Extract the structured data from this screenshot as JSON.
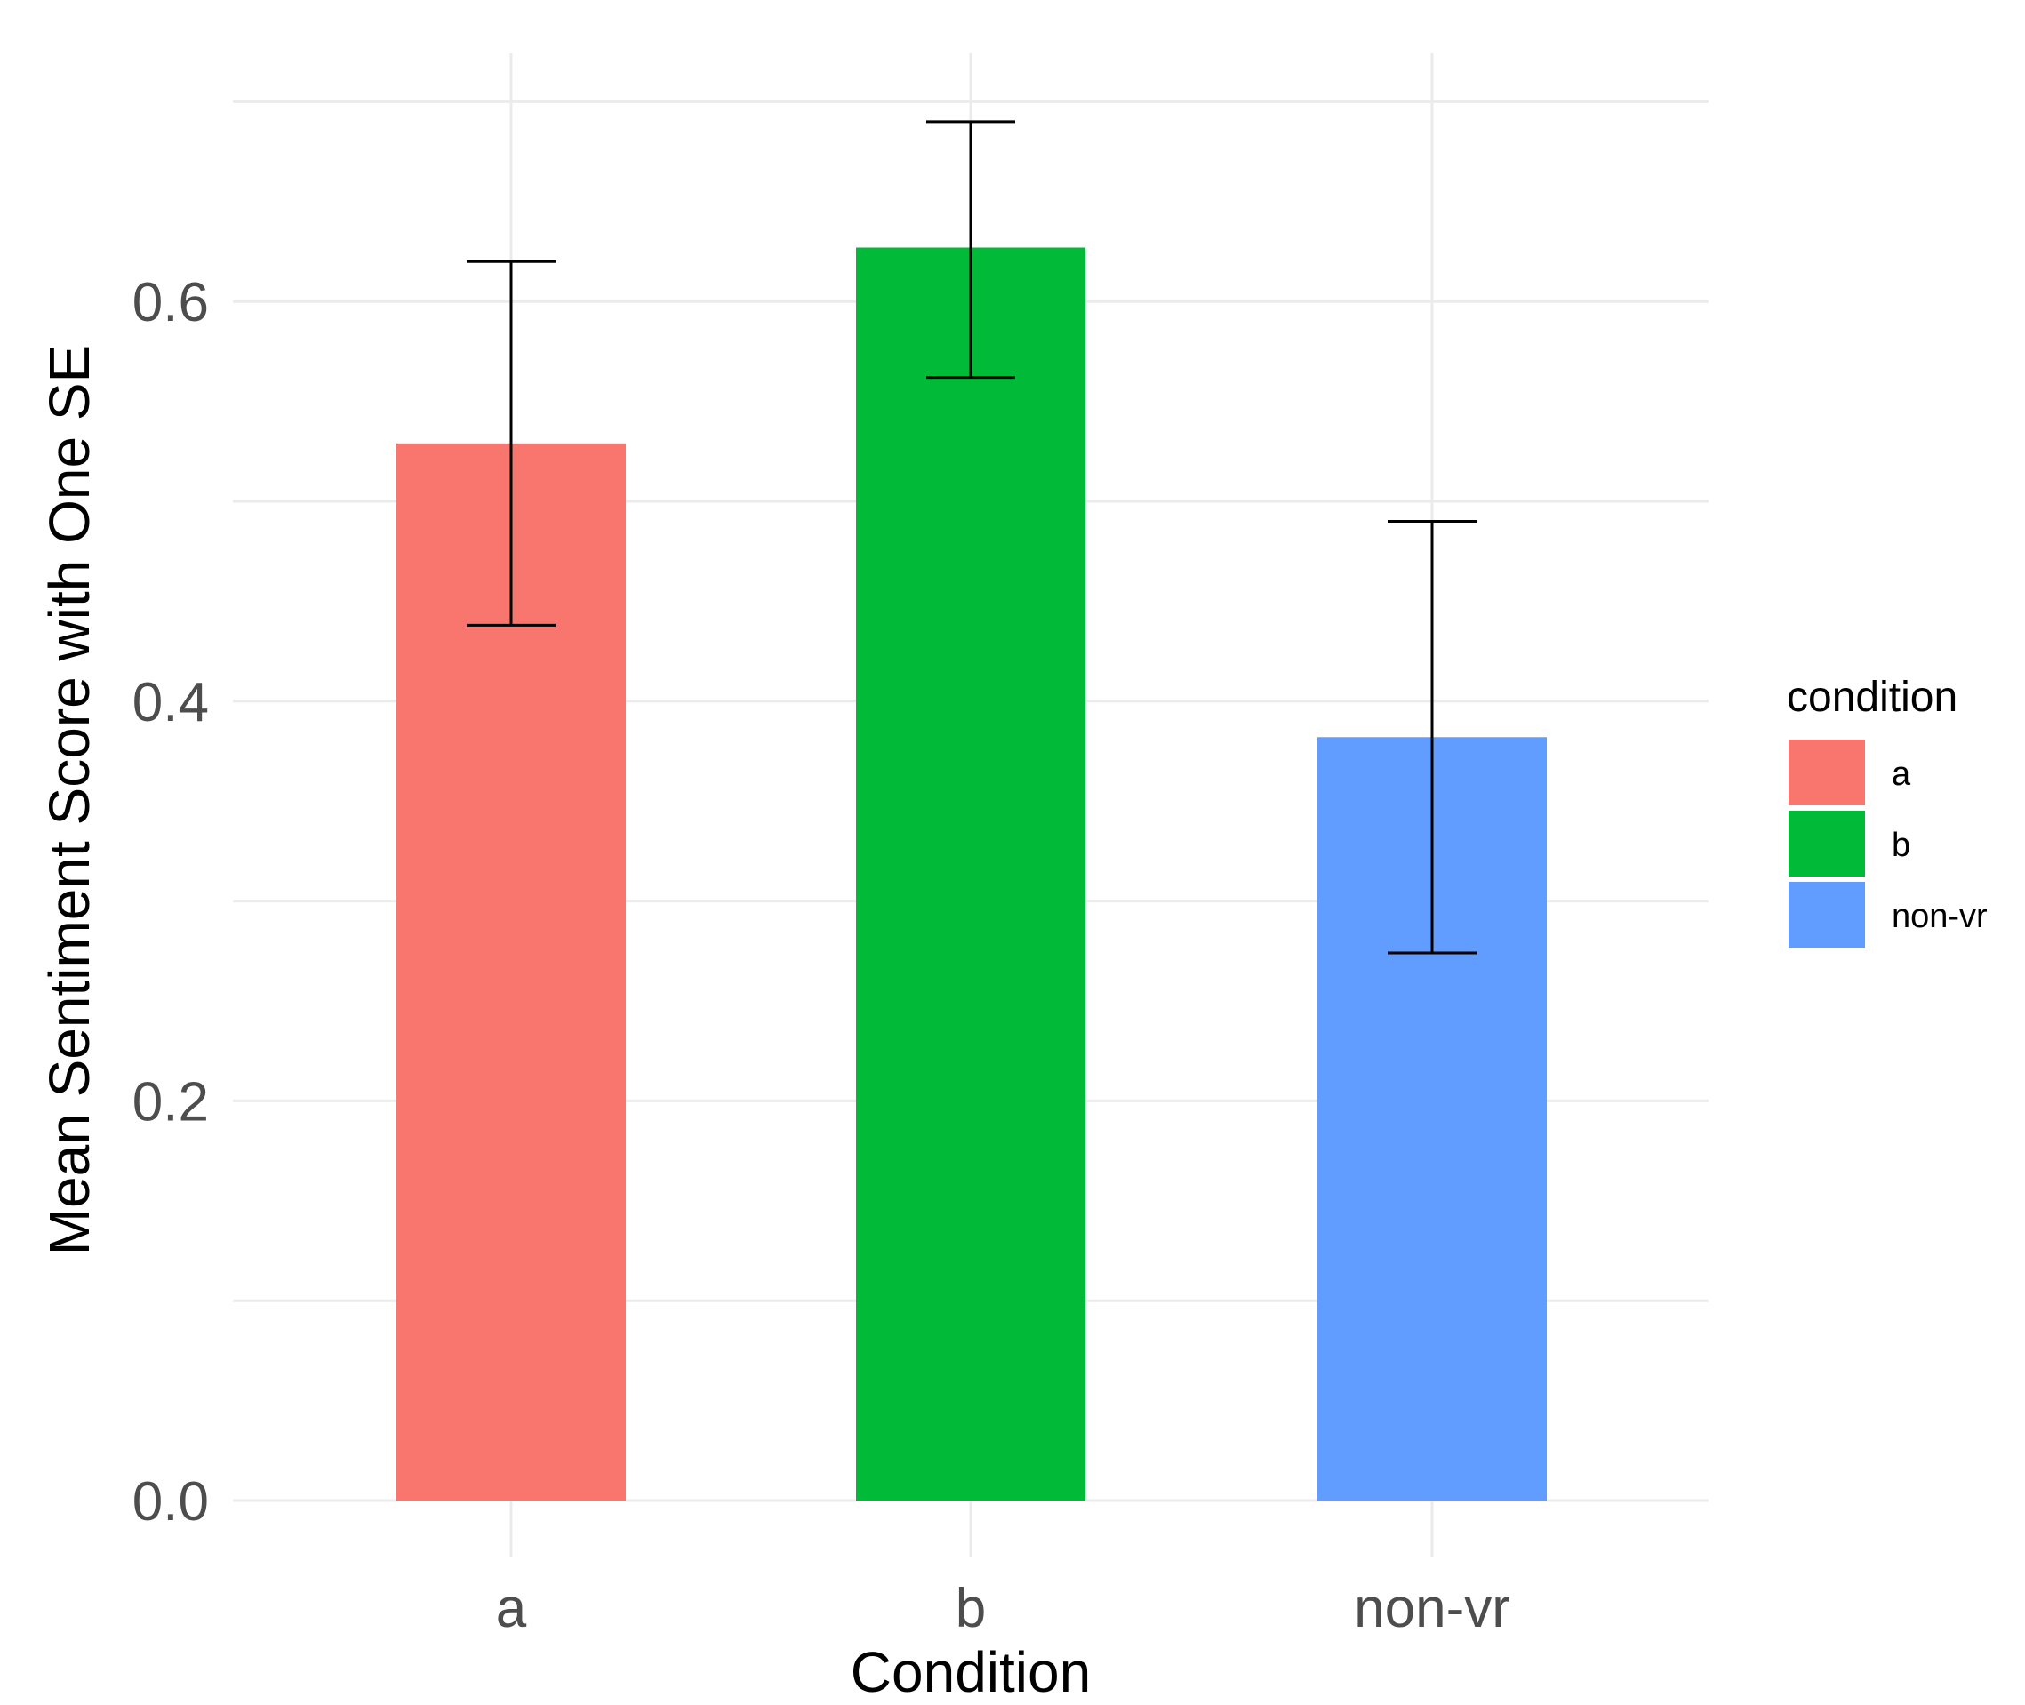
{
  "chart_data": {
    "type": "bar",
    "title": "",
    "xlabel": "Condition",
    "ylabel": "Mean Sentiment Score with One SE",
    "categories": [
      "a",
      "b",
      "non-vr"
    ],
    "values": [
      0.529,
      0.627,
      0.382
    ],
    "error_low": [
      0.438,
      0.562,
      0.274
    ],
    "error_high": [
      0.62,
      0.69,
      0.49
    ],
    "colors": [
      "#F8766D",
      "#00BA38",
      "#619CFF"
    ],
    "ylim": [
      0,
      0.7
    ],
    "yticks": [
      0.0,
      0.2,
      0.4,
      0.6
    ],
    "ytick_labels": [
      "0.0",
      "0.2",
      "0.4",
      "0.6"
    ],
    "grid": true,
    "legend": {
      "title": "condition",
      "placement": "right",
      "entries": [
        "a",
        "b",
        "non-vr"
      ]
    }
  }
}
